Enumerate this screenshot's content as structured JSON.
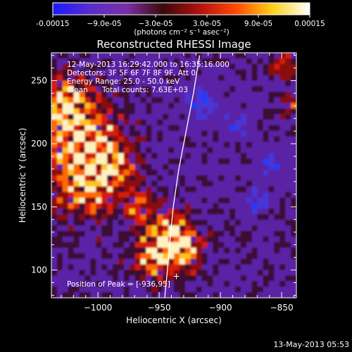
{
  "colorbar": {
    "tick_labels": [
      "-0.00015",
      "−9.0e-05",
      "−3.0e-05",
      "3.0e-05",
      "9.0e-05",
      "0.00015"
    ],
    "units_label": "(photons cm⁻² s⁻¹ asec⁻²)",
    "colors": [
      "#1a1aff",
      "#5a2ccc",
      "#7a2fa8",
      "#3a0a0a",
      "#b31010",
      "#ff4a00",
      "#ffd21a",
      "#ffffff"
    ]
  },
  "chart_data": {
    "type": "heatmap",
    "title": "Reconstructed RHESSI Image",
    "xlabel": "Heliocentric X (arcsec)",
    "ylabel": "Heliocentric Y (arcsec)",
    "xlim": [
      -1038,
      -838
    ],
    "ylim": [
      78,
      272
    ],
    "xticks": [
      -1000,
      -950,
      -900,
      -850
    ],
    "yticks": [
      100,
      150,
      200,
      250
    ],
    "xtick_labels": [
      "−1000",
      "−950",
      "−900",
      "−850"
    ],
    "ytick_labels": [
      "100",
      "150",
      "200",
      "250"
    ],
    "limb_curve": {
      "x": [
        -945.5,
        -943.3,
        -941.5,
        -938.5,
        -934,
        -928,
        -922,
        -917
      ],
      "y": [
        78,
        100,
        120,
        150,
        180,
        210,
        240,
        270
      ]
    },
    "peak_marker_label": "+"
  },
  "annotations": {
    "time_range": "12-May-2013 16:29:42.000 to 16:35:16.000",
    "detectors": "Detectors: 3F 5F 6F 7F 8F 9F, Att 0",
    "energy": "Energy Range: 25.0 - 50.0 keV",
    "clean_label": "Clean",
    "total_counts": "Total counts: 7.63E+03",
    "peak_position": "Position of Peak = [-936,95]"
  },
  "footer_timestamp": "13-May-2013 05:53"
}
